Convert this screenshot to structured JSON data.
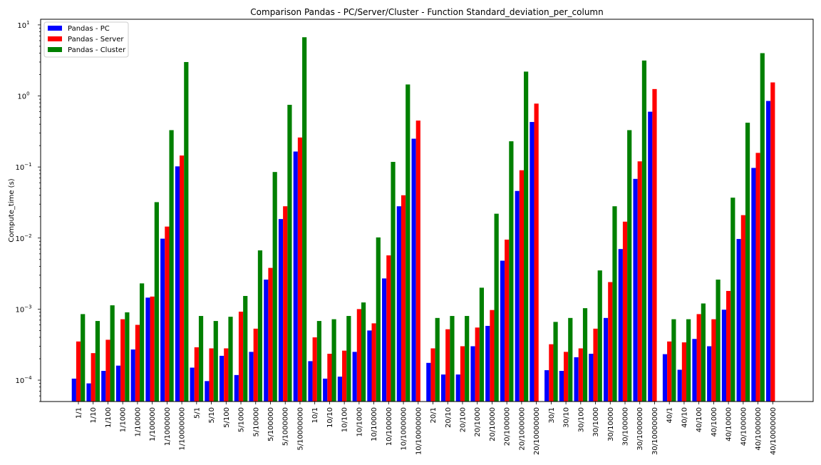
{
  "chart_data": {
    "type": "bar",
    "title": "Comparison Pandas - PC/Server/Cluster - Function Standard_deviation_per_column",
    "xlabel": "",
    "ylabel": "Compute_time (s)",
    "yscale": "log",
    "ylim": [
      5e-05,
      12
    ],
    "yticks": [
      {
        "value": 0.0001,
        "base": "10",
        "exp": "−4"
      },
      {
        "value": 0.001,
        "base": "10",
        "exp": "−3"
      },
      {
        "value": 0.01,
        "base": "10",
        "exp": "−2"
      },
      {
        "value": 0.1,
        "base": "10",
        "exp": "−1"
      },
      {
        "value": 1,
        "base": "10",
        "exp": "0"
      },
      {
        "value": 10,
        "base": "10",
        "exp": "1"
      }
    ],
    "grid": false,
    "legend_position": "top-left",
    "categories": [
      "1/1",
      "1/10",
      "1/100",
      "1/1000",
      "1/10000",
      "1/100000",
      "1/1000000",
      "1/10000000",
      "5/1",
      "5/10",
      "5/100",
      "5/1000",
      "5/10000",
      "5/100000",
      "5/1000000",
      "5/10000000",
      "10/1",
      "10/10",
      "10/100",
      "10/1000",
      "10/10000",
      "10/100000",
      "10/1000000",
      "10/10000000",
      "20/1",
      "20/10",
      "20/100",
      "20/1000",
      "20/10000",
      "20/100000",
      "20/1000000",
      "20/10000000",
      "30/1",
      "30/10",
      "30/100",
      "30/1000",
      "30/10000",
      "30/100000",
      "30/1000000",
      "30/10000000",
      "40/1",
      "40/10",
      "40/100",
      "40/1000",
      "40/10000",
      "40/100000",
      "40/1000000",
      "40/10000000"
    ],
    "series": [
      {
        "name": "Pandas - PC",
        "color": "#0000ff",
        "values": [
          0.000105,
          9e-05,
          0.000135,
          0.00016,
          0.00027,
          0.00145,
          0.0098,
          0.102,
          0.00015,
          9.7e-05,
          0.00022,
          0.000118,
          0.00025,
          0.0026,
          0.0185,
          0.165,
          0.000185,
          0.000105,
          0.000112,
          0.00025,
          0.0005,
          0.0027,
          0.028,
          0.25,
          0.000175,
          0.00012,
          0.00012,
          0.0003,
          0.00058,
          0.0048,
          0.046,
          0.43,
          0.000138,
          0.000135,
          0.00021,
          0.000235,
          0.00075,
          0.007,
          0.068,
          0.6,
          0.000232,
          0.00014,
          0.00038,
          0.0003,
          0.00098,
          0.0097,
          0.097,
          0.85
        ]
      },
      {
        "name": "Pandas - Server",
        "color": "#ff0000",
        "values": [
          0.00035,
          0.00024,
          0.00037,
          0.00072,
          0.0006,
          0.0015,
          0.0145,
          0.145,
          0.00029,
          0.00028,
          0.00028,
          0.00092,
          0.00053,
          0.0038,
          0.028,
          0.26,
          0.0004,
          0.000235,
          0.00026,
          0.001,
          0.00063,
          0.0057,
          0.04,
          0.45,
          0.00028,
          0.00052,
          0.0003,
          0.00055,
          0.00097,
          0.0095,
          0.09,
          0.78,
          0.00032,
          0.00025,
          0.00028,
          0.00053,
          0.0024,
          0.017,
          0.12,
          1.25,
          0.00035,
          0.00034,
          0.00085,
          0.00072,
          0.0018,
          0.021,
          0.158,
          1.55
        ]
      },
      {
        "name": "Pandas - Cluster",
        "color": "#008000",
        "values": [
          0.00085,
          0.00068,
          0.00113,
          0.0009,
          0.0023,
          0.032,
          0.33,
          3.0,
          0.0008,
          0.00068,
          0.00078,
          0.00153,
          0.0067,
          0.085,
          0.75,
          6.7,
          0.00068,
          0.00072,
          0.0008,
          0.00124,
          0.0102,
          0.118,
          1.45,
          null,
          0.00075,
          0.0008,
          0.0008,
          0.002,
          0.022,
          0.23,
          2.2,
          null,
          0.00066,
          0.00075,
          0.00103,
          0.0035,
          0.028,
          0.33,
          3.15,
          null,
          0.00072,
          0.00072,
          0.0012,
          0.0026,
          0.037,
          0.42,
          4.0,
          null
        ]
      }
    ]
  }
}
